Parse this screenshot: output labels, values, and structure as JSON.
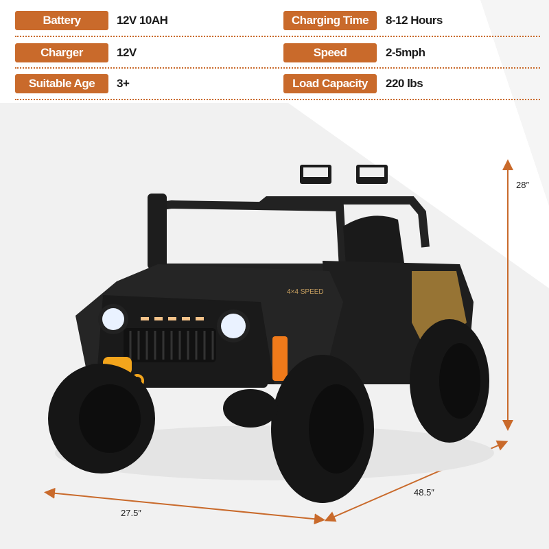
{
  "specs": [
    {
      "label": "Battery",
      "value": "12V 10AH"
    },
    {
      "label": "Charging Time",
      "value": "8-12 Hours"
    },
    {
      "label": "Charger",
      "value": "12V"
    },
    {
      "label": "Speed",
      "value": "2-5mph"
    },
    {
      "label": "Suitable Age",
      "value": "3+"
    },
    {
      "label": "Load Capacity",
      "value": "220 lbs"
    }
  ],
  "dimensions": {
    "height": "28″",
    "width": "27.5″",
    "length": "48.5″"
  },
  "badge": "4×4 SPEED",
  "colors": {
    "accent": "#c96a2b",
    "body": "#1c1c1c",
    "shock": "#f07a1a",
    "winch": "#f3a51c"
  }
}
